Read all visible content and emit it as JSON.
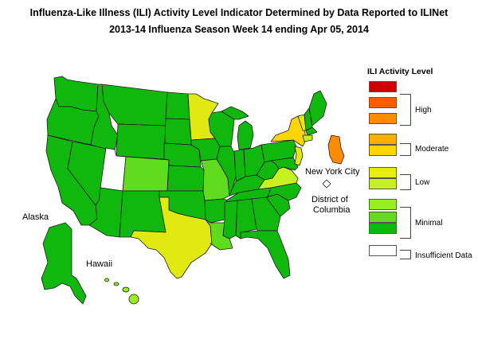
{
  "header": {
    "title_line1": "Influenza-Like Illness (ILI) Activity Level Indicator Determined by Data Reported to ILINet",
    "title_line2": "2013-14  Influenza Season Week  14 ending Apr 05, 2014"
  },
  "map_labels": {
    "alaska": "Alaska",
    "hawaii": "Hawaii",
    "nyc": "New York City",
    "dc_line1": "District of",
    "dc_line2": "Columbia"
  },
  "legend": {
    "title": "ILI Activity Level",
    "swatches": [
      {
        "level": 10,
        "color": "#d10000"
      },
      {
        "level": 9,
        "color": "#ff5a00"
      },
      {
        "level": 8,
        "color": "#ff8c00"
      },
      {
        "level": 7,
        "color": "#ffae00"
      },
      {
        "level": 6,
        "color": "#ffd400"
      },
      {
        "level": 5,
        "color": "#e8ee10"
      },
      {
        "level": 4,
        "color": "#c6f020"
      },
      {
        "level": 3,
        "color": "#99ee22"
      },
      {
        "level": 2,
        "color": "#5fdc1e"
      },
      {
        "level": 1,
        "color": "#10b80e"
      },
      {
        "level": 0,
        "color": "#ffffff"
      }
    ],
    "groups": {
      "high": "High",
      "moderate": "Moderate",
      "low": "Low",
      "minimal": "Minimal",
      "insufficient": "Insufficient Data"
    }
  },
  "colors": {
    "minimal": "#10b80e",
    "minimal_light": "#5fdc1e",
    "low": "#e0ea10",
    "low_light": "#c6f020",
    "moderate": "#ffd400",
    "high": "#ff8c00",
    "insufficient": "#ffffff",
    "border": "#1a1a1a"
  }
}
